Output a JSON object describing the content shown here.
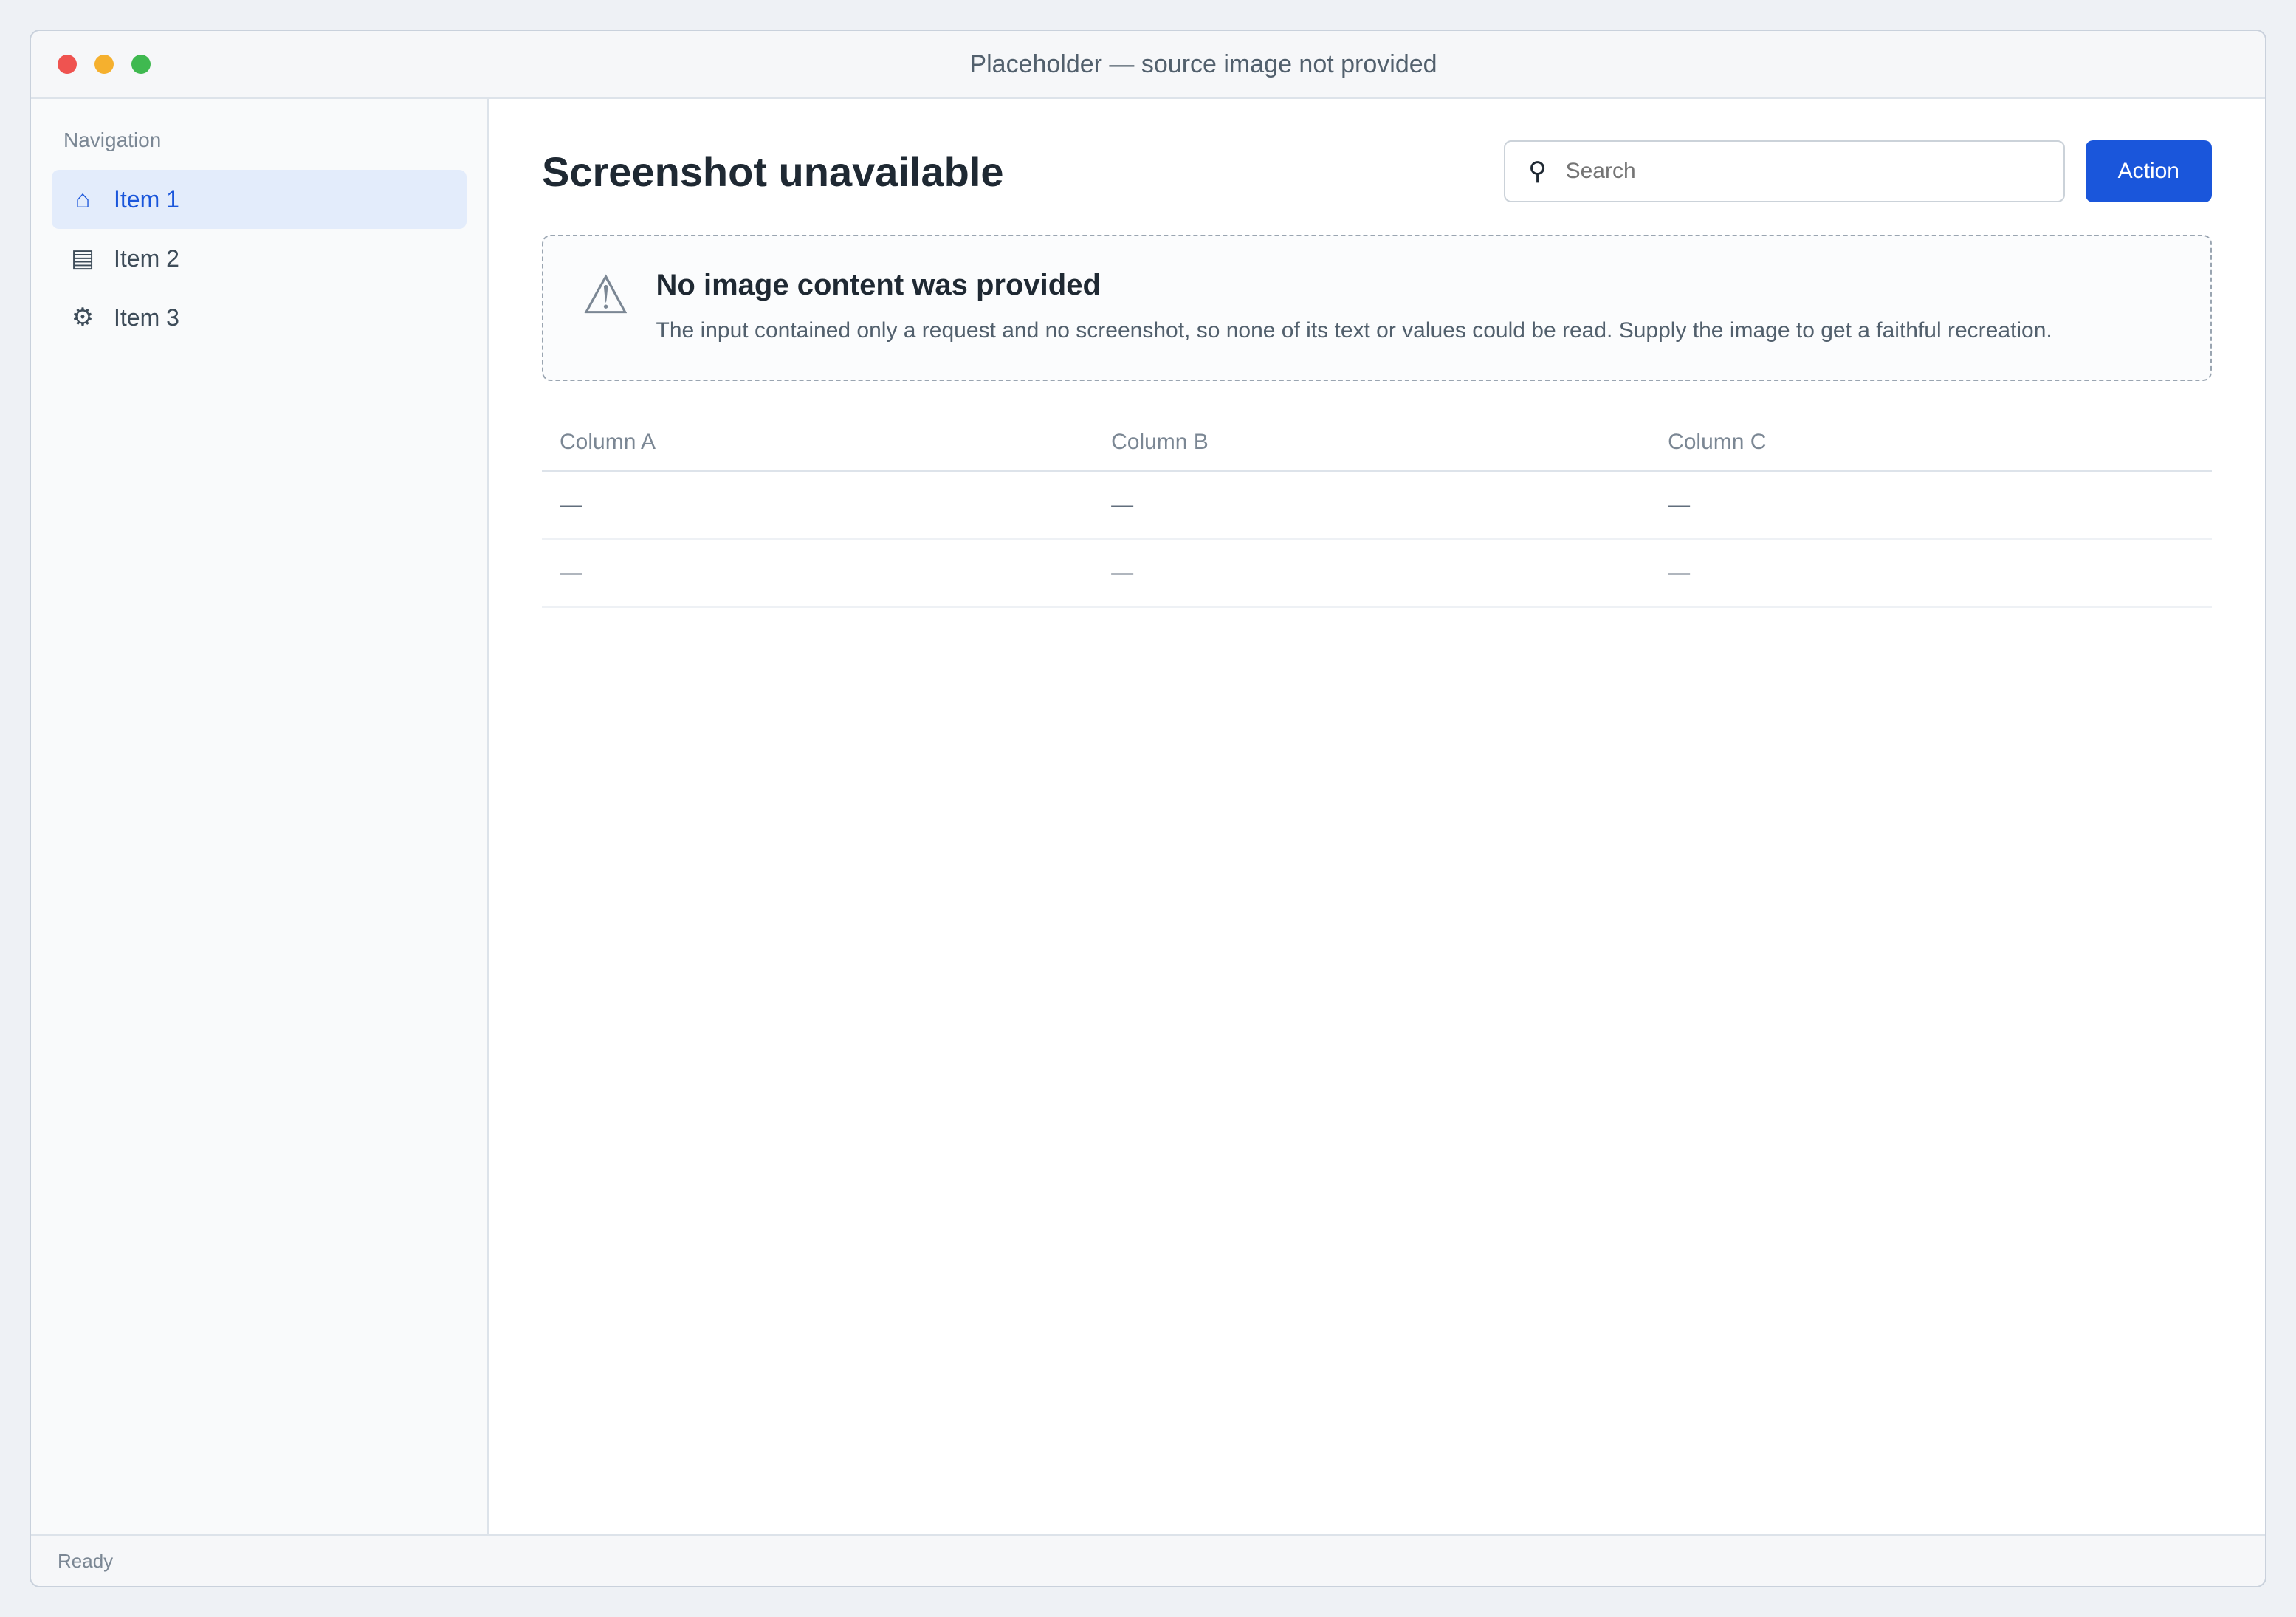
{
  "colors": {
    "accent": "#1a56db",
    "close": "#ef5350",
    "minimize": "#f5b02e",
    "maximize": "#3fb950"
  },
  "window": {
    "title": "Placeholder — source image not provided"
  },
  "sidebar": {
    "heading": "Navigation",
    "items": [
      {
        "label": "Item 1",
        "icon": "home-icon"
      },
      {
        "label": "Item 2",
        "icon": "folder-icon"
      },
      {
        "label": "Item 3",
        "icon": "gear-icon"
      }
    ]
  },
  "main": {
    "title": "Screenshot unavailable",
    "search_placeholder": "Search",
    "action_label": "Action",
    "notice": {
      "heading": "No image content was provided",
      "body": "The input contained only a request and no screenshot, so none of its text or values could be read. Supply the image to get a faithful recreation."
    },
    "table": {
      "columns": [
        "Column A",
        "Column B",
        "Column C"
      ],
      "rows": [
        [
          "—",
          "—",
          "—"
        ],
        [
          "—",
          "—",
          "—"
        ]
      ]
    }
  },
  "status": {
    "text": "Ready"
  }
}
